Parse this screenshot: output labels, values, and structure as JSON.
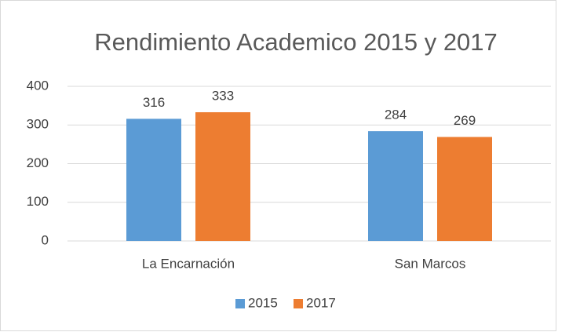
{
  "chart_data": {
    "type": "bar",
    "title": "Rendimiento Academico 2015 y 2017",
    "categories": [
      "La Encarnación",
      "San Marcos"
    ],
    "series": [
      {
        "name": "2015",
        "color": "#5b9bd5",
        "values": [
          316,
          284
        ]
      },
      {
        "name": "2017",
        "color": "#ed7d31",
        "values": [
          333,
          269
        ]
      }
    ],
    "ylim": [
      0,
      400
    ],
    "yticks": [
      0,
      100,
      200,
      300,
      400
    ],
    "grid": true,
    "legend": "bottom"
  }
}
